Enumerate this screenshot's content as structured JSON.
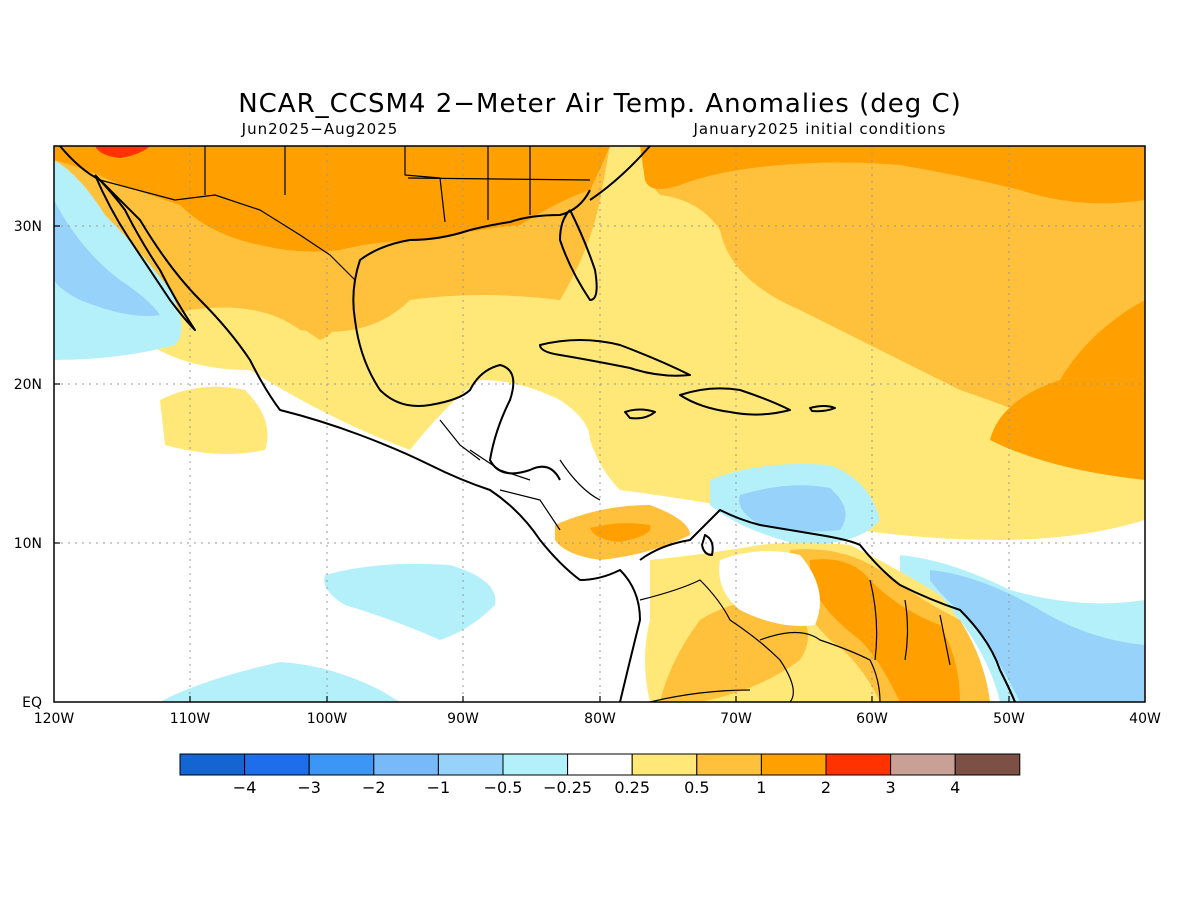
{
  "header": {
    "title": "NCAR_CCSM4 2−Meter Air Temp. Anomalies (deg C)",
    "period": "Jun2025−Aug2025",
    "init": "January2025 initial conditions"
  },
  "map": {
    "x_ticks": [
      "120W",
      "110W",
      "100W",
      "90W",
      "80W",
      "70W",
      "60W",
      "50W",
      "40W"
    ],
    "y_ticks": [
      "30N",
      "20N",
      "10N",
      "EQ"
    ],
    "colors": {
      "m4": "#1464d2",
      "m3": "#1e6eeb",
      "m2": "#3c96f5",
      "m1": "#78b9fa",
      "m05": "#96d2fa",
      "m025": "#b4f0fa",
      "zero": "#ffffff",
      "p025": "#ffe878",
      "p05": "#ffc03c",
      "p1": "#ffa000",
      "p2": "#ff3200",
      "p3": "#c8a096",
      "p4": "#7d5046"
    }
  },
  "colorbar": {
    "labels": [
      "−4",
      "−3",
      "−2",
      "−1",
      "−0.5",
      "−0.25",
      "0.25",
      "0.5",
      "1",
      "2",
      "3",
      "4"
    ],
    "colors": [
      "#1464d2",
      "#1e6eeb",
      "#3c96f5",
      "#78b9fa",
      "#96d2fa",
      "#b4f0fa",
      "#ffffff",
      "#ffe878",
      "#ffc03c",
      "#ffa000",
      "#ff3200",
      "#c8a096",
      "#7d5046"
    ]
  }
}
